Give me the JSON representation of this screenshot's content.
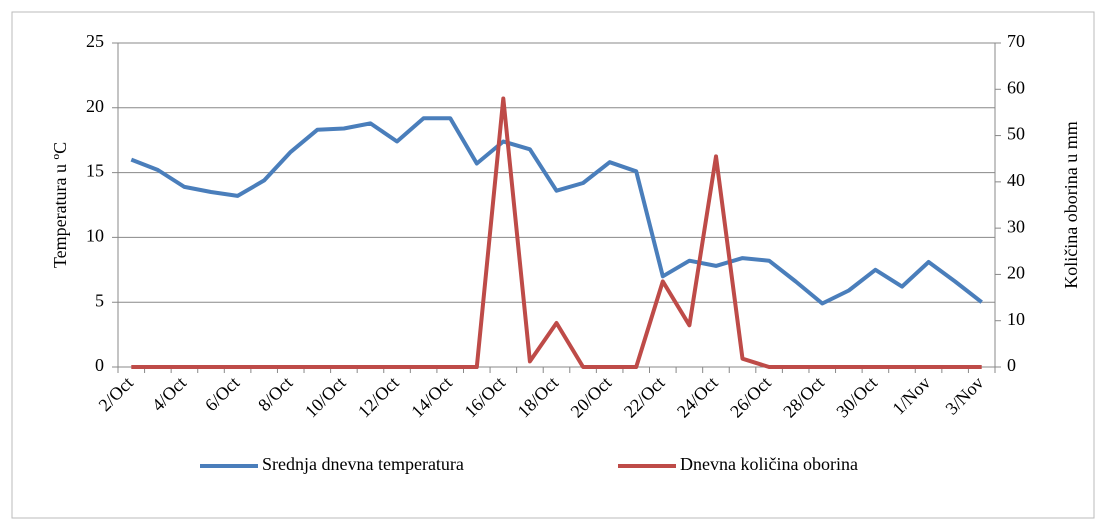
{
  "chart_data": {
    "type": "line",
    "categories": [
      "2/Oct",
      null,
      "4/Oct",
      null,
      "6/Oct",
      null,
      "8/Oct",
      null,
      "10/Oct",
      null,
      "12/Oct",
      null,
      "14/Oct",
      null,
      "16/Oct",
      null,
      "18/Oct",
      null,
      "20/Oct",
      null,
      "22/Oct",
      null,
      "24/Oct",
      null,
      "26/Oct",
      null,
      "28/Oct",
      null,
      "30/Oct",
      null,
      "1/Nov",
      null,
      "3/Nov"
    ],
    "series": [
      {
        "name": "Srednja dnevna temperatura",
        "color": "#4a7ebb",
        "axis": "y",
        "values": [
          16.0,
          15.2,
          13.9,
          13.5,
          13.2,
          14.4,
          16.6,
          18.3,
          18.4,
          18.8,
          17.4,
          19.2,
          19.2,
          15.7,
          17.4,
          16.8,
          13.6,
          14.2,
          15.8,
          15.1,
          7.0,
          8.2,
          7.8,
          8.4,
          8.2,
          6.6,
          4.9,
          5.9,
          7.5,
          6.2,
          8.1,
          6.6,
          5.0
        ]
      },
      {
        "name": "Dnevna količina oborina",
        "color": "#be4b48",
        "axis": "y2",
        "values": [
          0,
          0,
          0,
          0,
          0,
          0,
          0,
          0,
          0,
          0,
          0,
          0,
          0,
          0,
          58,
          1.2,
          9.5,
          0,
          0,
          0,
          18.5,
          9,
          45.5,
          1.8,
          0,
          0,
          0,
          0,
          0,
          0,
          0,
          0,
          0
        ]
      }
    ],
    "ylabel": "Temperatura u ºC",
    "y2label": "Količina oborina u mm",
    "ylim": [
      0,
      25
    ],
    "yticks": [
      0,
      5,
      10,
      15,
      20,
      25
    ],
    "y2lim": [
      0,
      70
    ],
    "y2ticks": [
      0,
      10,
      20,
      30,
      40,
      50,
      60,
      70
    ],
    "grid": true,
    "legend": "bottom"
  }
}
